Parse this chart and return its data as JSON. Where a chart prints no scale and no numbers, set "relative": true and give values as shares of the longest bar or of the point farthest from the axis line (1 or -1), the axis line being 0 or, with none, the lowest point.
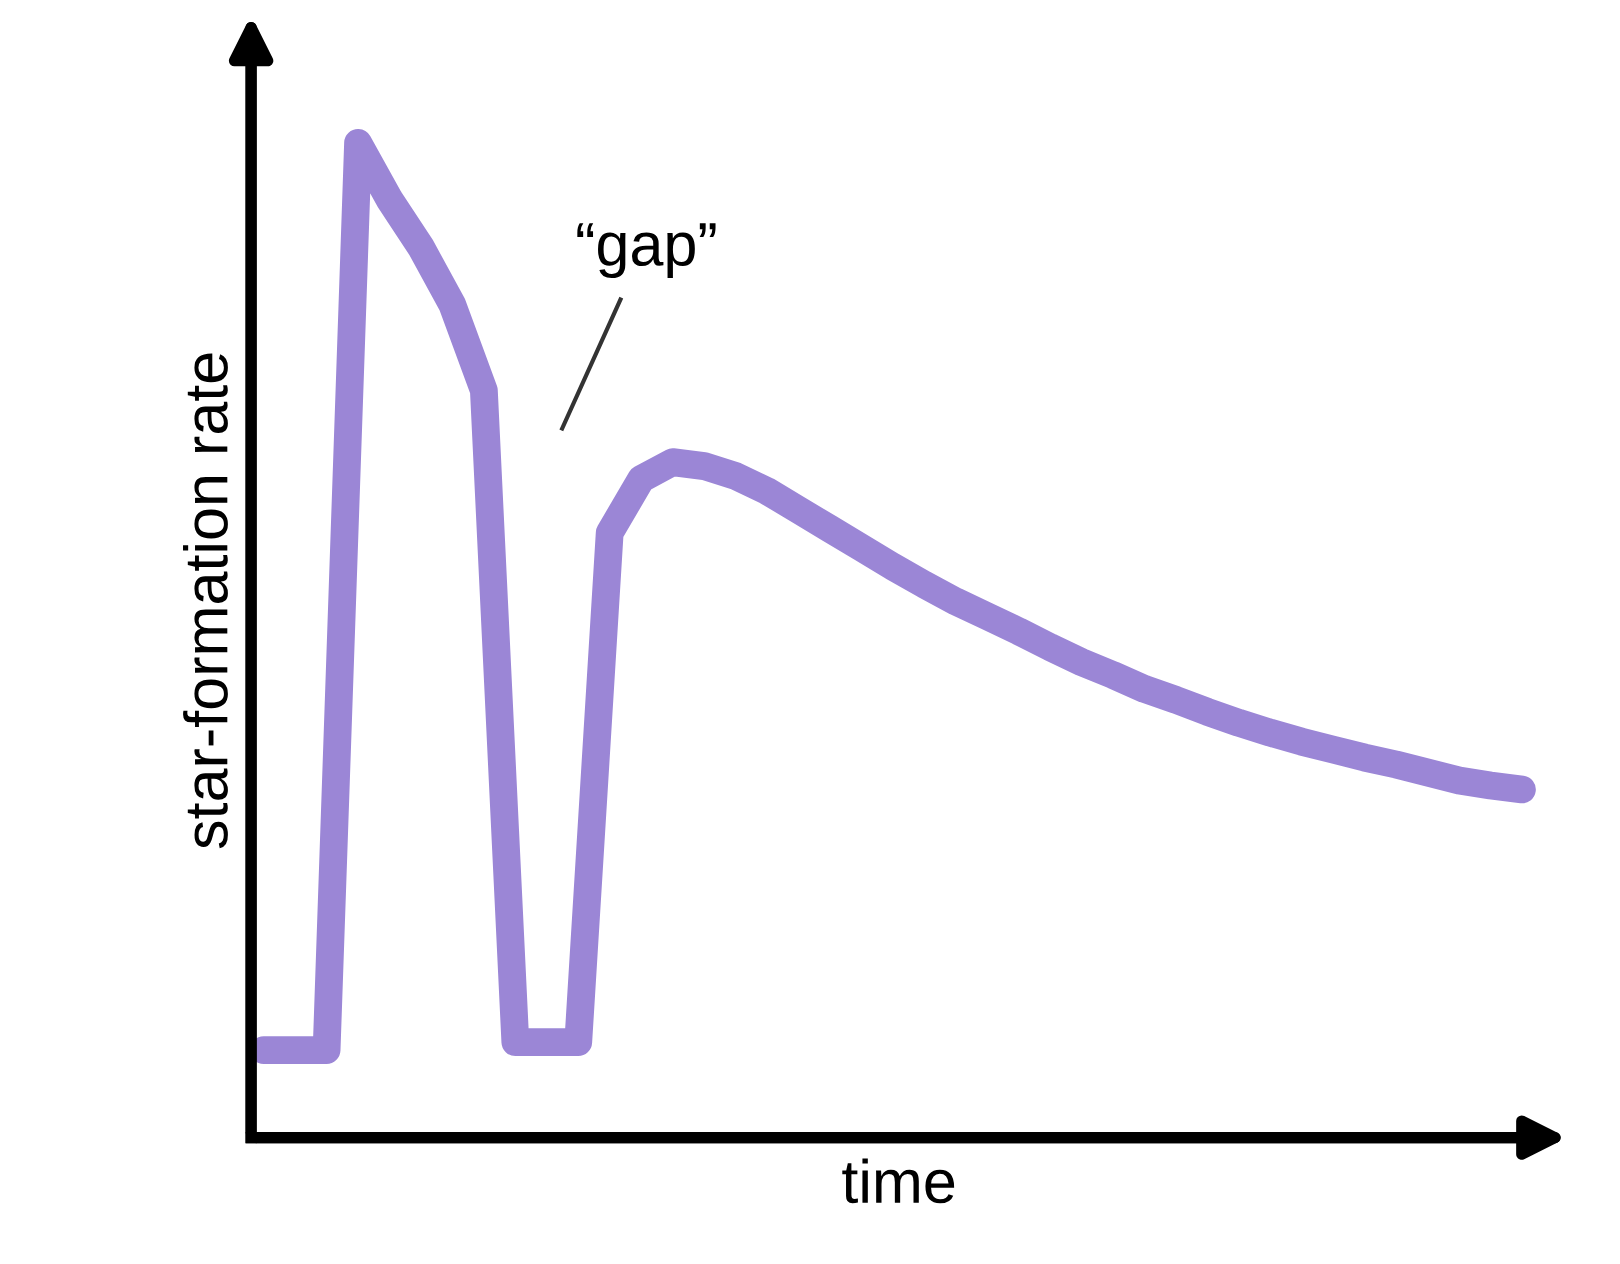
{
  "chart_data": {
    "type": "line",
    "relative": true,
    "xlabel": "time",
    "ylabel": "star-formation rate",
    "categories": [
      null,
      null,
      null,
      null,
      null,
      null,
      null,
      null,
      null,
      null,
      null,
      null,
      null,
      null,
      null,
      null,
      null,
      null,
      null,
      null,
      null,
      null,
      null,
      null,
      null,
      null,
      null,
      null,
      null,
      null,
      null,
      null,
      null,
      null,
      null,
      null,
      null,
      null,
      null,
      null,
      null
    ],
    "series": [
      {
        "color": "#9b86d6",
        "values": [
          0.088,
          0.088,
          0.088,
          1,
          0.943,
          0.895,
          0.837,
          0.751,
          0.096,
          0.096,
          0.096,
          0.608,
          0.662,
          0.679,
          0.675,
          0.665,
          0.65,
          0.631,
          0.612,
          0.593,
          0.574,
          0.556,
          0.539,
          0.524,
          0.509,
          0.493,
          0.478,
          0.465,
          0.451,
          0.44,
          0.428,
          0.417,
          0.407,
          0.398,
          0.39,
          0.382,
          0.375,
          0.367,
          0.359,
          0.354,
          0.35
        ]
      }
    ],
    "annotations": [
      "“gap”"
    ]
  }
}
